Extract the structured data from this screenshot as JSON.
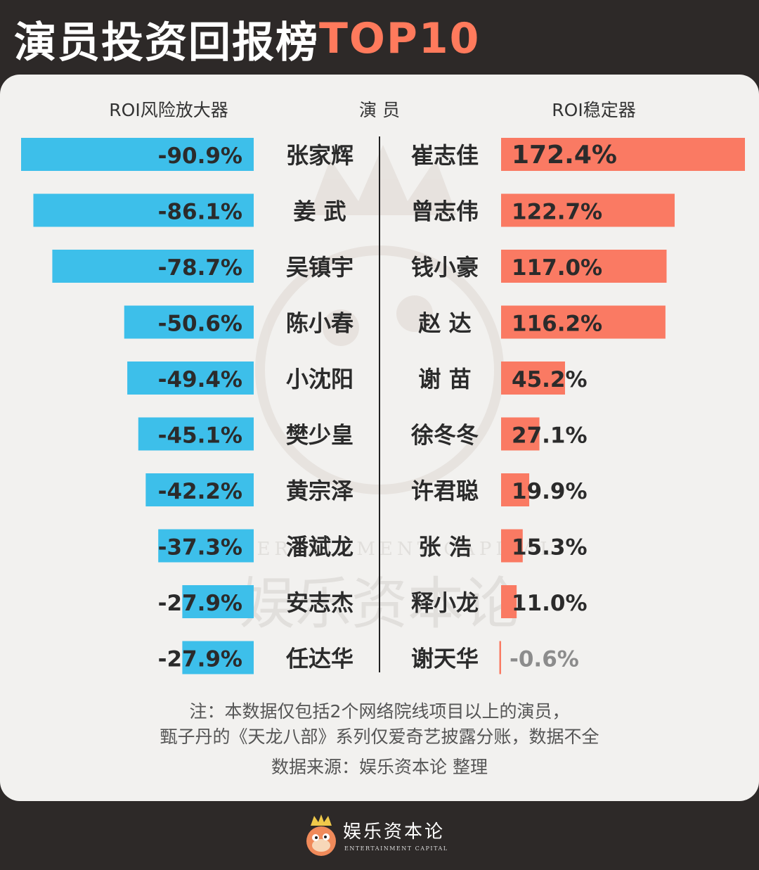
{
  "title": {
    "main": "演员投资回报榜",
    "accent": "TOP10"
  },
  "colors": {
    "background": "#2d2928",
    "card": "#f2f1ef",
    "left_bar": "#3dbfea",
    "right_bar": "#fa7a63",
    "accent": "#ff7a5c"
  },
  "chart_data": {
    "type": "bar",
    "headers": {
      "left": "ROI风险放大器",
      "center": "演 员",
      "right": "ROI稳定器"
    },
    "left_series": {
      "name": "ROI风险放大器",
      "categories": [
        "张家辉",
        "姜 武",
        "吴镇宇",
        "陈小春",
        "小沈阳",
        "樊少皇",
        "黄宗泽",
        "潘斌龙",
        "安志杰",
        "任达华"
      ],
      "values": [
        -90.9,
        -86.1,
        -78.7,
        -50.6,
        -49.4,
        -45.1,
        -42.2,
        -37.3,
        -27.9,
        -27.9
      ],
      "labels": [
        "-90.9%",
        "-86.1%",
        "-78.7%",
        "-50.6%",
        "-49.4%",
        "-45.1%",
        "-42.2%",
        "-37.3%",
        "-27.9%",
        "-27.9%"
      ]
    },
    "right_series": {
      "name": "ROI稳定器",
      "categories": [
        "崔志佳",
        "曾志伟",
        "钱小豪",
        "赵 达",
        "谢 苗",
        "徐冬冬",
        "许君聪",
        "张 浩",
        "释小龙",
        "谢天华"
      ],
      "values": [
        172.4,
        122.7,
        117.0,
        116.2,
        45.2,
        27.1,
        19.9,
        15.3,
        11.0,
        -0.6
      ],
      "labels": [
        "172.4%",
        "122.7%",
        "117.0%",
        "116.2%",
        "45.2%",
        "27.1%",
        "19.9%",
        "15.3%",
        "11.0%",
        "-0.6%"
      ]
    }
  },
  "notes": {
    "line1": "注：本数据仅包括2个网络院线项目以上的演员，",
    "line2": "甄子丹的《天龙八部》系列仅爱奇艺披露分账，数据不全",
    "source": "数据来源：娱乐资本论 整理"
  },
  "watermark": {
    "text": "娱乐资本论",
    "sub": "ENTERTAINMENT CAPITAL"
  },
  "brand": {
    "name": "娱乐资本论",
    "sub": "ENTERTAINMENT CAPITAL",
    "logo_icon": "crowned-mascot-icon"
  }
}
